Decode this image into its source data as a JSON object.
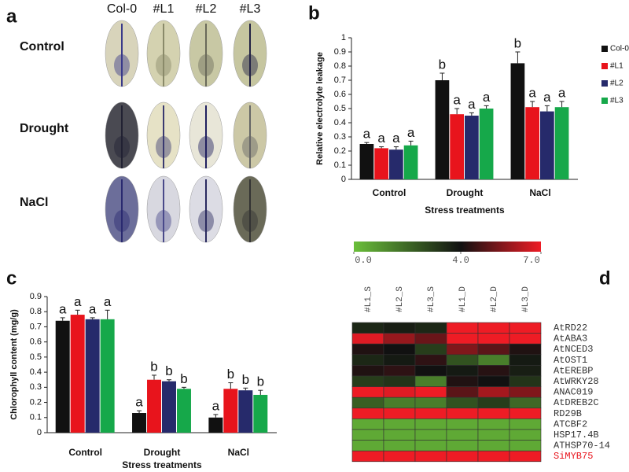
{
  "panel_labels": [
    "a",
    "b",
    "c",
    "d"
  ],
  "leaf_panel": {
    "columns": [
      "Col-0",
      "#L1",
      "#L2",
      "#L3"
    ],
    "rows": [
      "Control",
      "Drought",
      "NaCl"
    ]
  },
  "chart_data": [
    {
      "type": "bar",
      "y_label": "Relative electrolyte leakage",
      "x_label": "Stress treatments",
      "categories": [
        "Control",
        "Drought",
        "NaCl"
      ],
      "series": [
        {
          "name": "Col-0",
          "color": "#111111",
          "values": [
            0.25,
            0.7,
            0.82
          ],
          "errors": [
            0.01,
            0.05,
            0.08
          ],
          "letters": [
            "a",
            "b",
            "b"
          ]
        },
        {
          "name": "#L1",
          "color": "#e8141c",
          "values": [
            0.22,
            0.46,
            0.51
          ],
          "errors": [
            0.01,
            0.04,
            0.04
          ],
          "letters": [
            "a",
            "a",
            "a"
          ]
        },
        {
          "name": "#L2",
          "color": "#262a6b",
          "values": [
            0.21,
            0.45,
            0.48
          ],
          "errors": [
            0.02,
            0.02,
            0.04
          ],
          "letters": [
            "a",
            "a",
            "a"
          ]
        },
        {
          "name": "#L3",
          "color": "#16a84a",
          "values": [
            0.24,
            0.5,
            0.51
          ],
          "errors": [
            0.03,
            0.02,
            0.04
          ],
          "letters": [
            "a",
            "a",
            "a"
          ]
        }
      ],
      "ylim": [
        0,
        1
      ],
      "yticks": [
        0,
        0.1,
        0.2,
        0.3,
        0.4,
        0.5,
        0.6,
        0.7,
        0.8,
        0.9,
        1
      ],
      "legend": "right"
    },
    {
      "type": "bar",
      "y_label": "Chlorophyll content (mg/g)",
      "x_label": "Stress treatments",
      "categories": [
        "Control",
        "Drought",
        "NaCl"
      ],
      "series": [
        {
          "color": "#111111",
          "values": [
            0.74,
            0.13,
            0.1
          ],
          "errors": [
            0.02,
            0.015,
            0.02
          ],
          "letters": [
            "a",
            "a",
            "a"
          ]
        },
        {
          "color": "#e8141c",
          "values": [
            0.78,
            0.35,
            0.29
          ],
          "errors": [
            0.03,
            0.03,
            0.04
          ],
          "letters": [
            "a",
            "b",
            "b"
          ]
        },
        {
          "color": "#262a6b",
          "values": [
            0.75,
            0.34,
            0.28
          ],
          "errors": [
            0.01,
            0.01,
            0.015
          ],
          "letters": [
            "a",
            "b",
            "b"
          ]
        },
        {
          "color": "#16a84a",
          "values": [
            0.75,
            0.29,
            0.25
          ],
          "errors": [
            0.06,
            0.01,
            0.03
          ],
          "letters": [
            "a",
            "b",
            "b"
          ]
        }
      ],
      "ylim": [
        0,
        0.9
      ],
      "yticks": [
        0,
        0.1,
        0.2,
        0.3,
        0.4,
        0.5,
        0.6,
        0.7,
        0.8,
        0.9
      ]
    },
    {
      "type": "heatmap",
      "x": [
        "#L1_S",
        "#L2_S",
        "#L3_S",
        "#L1_D",
        "#L2_D",
        "#L3_D"
      ],
      "y": [
        "AtRD22",
        "AtABA3",
        "AtNCED3",
        "AtOST1",
        "AtEREBP",
        "AtWRKY28",
        "ANAC019",
        "AtDREB2C",
        "RD29B",
        "ATCBF2",
        "HSP17.4B",
        "ATHSP70-14",
        "SiMYB75"
      ],
      "values": [
        [
          3.5,
          3.7,
          3.5,
          7,
          7,
          7
        ],
        [
          6.8,
          5.8,
          5.2,
          7,
          7,
          7
        ],
        [
          4.2,
          4.0,
          3.0,
          5.5,
          5.0,
          4.2
        ],
        [
          3.5,
          3.8,
          4.4,
          2.5,
          1.5,
          3.8
        ],
        [
          4.2,
          4.4,
          4.0,
          3.8,
          4.3,
          3.7
        ],
        [
          3.0,
          3.2,
          1.5,
          4.2,
          4.0,
          3.2
        ],
        [
          7,
          6.8,
          7,
          5.0,
          6.0,
          5.5
        ],
        [
          2.2,
          1.5,
          1.5,
          2.5,
          3.0,
          2.0
        ],
        [
          7,
          7,
          7,
          7,
          7,
          7
        ],
        [
          0.5,
          0.5,
          0.5,
          0.5,
          0.5,
          0.5
        ],
        [
          0.5,
          0.5,
          0.5,
          0.5,
          0.5,
          0.5
        ],
        [
          0.5,
          0.5,
          0.5,
          0.5,
          0.5,
          0.5
        ],
        [
          7,
          7,
          7,
          7,
          7,
          7
        ]
      ],
      "clim": [
        0,
        7
      ],
      "cticks": [
        {
          "value": 0,
          "label": "0.0"
        },
        {
          "value": 4,
          "label": "4.0"
        },
        {
          "value": 7,
          "label": "7.0"
        }
      ],
      "colorscale": [
        [
          0,
          "#6abf3a"
        ],
        [
          4,
          "#111111"
        ],
        [
          7,
          "#ee1c25"
        ]
      ],
      "row_label_colors": [
        "#333333",
        "#333333",
        "#333333",
        "#333333",
        "#333333",
        "#333333",
        "#333333",
        "#333333",
        "#333333",
        "#333333",
        "#333333",
        "#333333",
        "#e8141c"
      ]
    }
  ]
}
